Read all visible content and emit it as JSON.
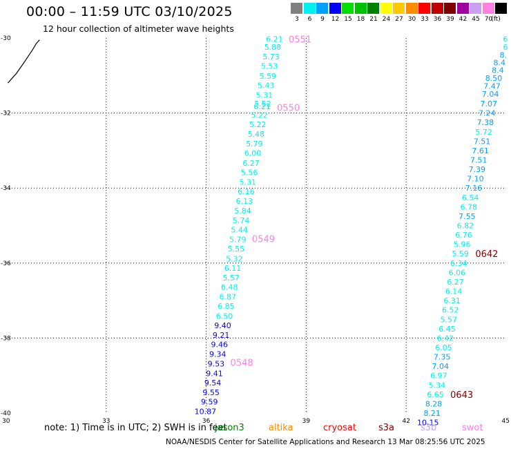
{
  "header": {
    "title": "00:00 – 11:59 UTC 03/10/2025",
    "subtitle": "12 hour collection of altimeter wave heights"
  },
  "legend": {
    "unit_label": "(ft)",
    "bins": [
      {
        "label": "3",
        "color": "#808080"
      },
      {
        "label": "6",
        "color": "#00f0f0"
      },
      {
        "label": "9",
        "color": "#00a0ff"
      },
      {
        "label": "12",
        "color": "#0000ff"
      },
      {
        "label": "15",
        "color": "#00e000"
      },
      {
        "label": "18",
        "color": "#00c000"
      },
      {
        "label": "21",
        "color": "#008000"
      },
      {
        "label": "24",
        "color": "#ffff00"
      },
      {
        "label": "27",
        "color": "#ffc800"
      },
      {
        "label": "30",
        "color": "#ff8c00"
      },
      {
        "label": "33",
        "color": "#ff0000"
      },
      {
        "label": "36",
        "color": "#c00000"
      },
      {
        "label": "39",
        "color": "#800000"
      },
      {
        "label": "42",
        "color": "#a000a0"
      },
      {
        "label": "45",
        "color": "#c8a0f0"
      },
      {
        "label": "70",
        "color": "#ff80e0"
      },
      {
        "label": "",
        "color": "#000000"
      }
    ]
  },
  "chart_data": {
    "type": "scatter",
    "title": "00:00 – 11:59 UTC 03/10/2025",
    "subtitle": "12 hour collection of altimeter wave heights",
    "xlim": [
      30,
      45
    ],
    "ylim": [
      -40,
      -30
    ],
    "x_ticks": [
      "30",
      "33",
      "36",
      "39",
      "42",
      "45"
    ],
    "y_ticks": [
      "-30",
      "-32",
      "-34",
      "-36",
      "-38",
      "-40"
    ],
    "grid": true,
    "units": "ft",
    "coastline": [
      [
        30.05,
        -31.2
      ],
      [
        30.3,
        -30.95
      ],
      [
        30.5,
        -30.7
      ],
      [
        30.65,
        -30.5
      ],
      [
        30.8,
        -30.3
      ],
      [
        30.9,
        -30.15
      ],
      [
        31.0,
        -30.05
      ]
    ],
    "tracks": [
      {
        "name": "track-west",
        "points": [
          {
            "x": 38.3,
            "y": -30.03,
            "v": "6.21",
            "c": "#00f0f0"
          },
          {
            "x": 38.25,
            "y": -30.24,
            "v": "5.88",
            "c": "#00f0f0"
          },
          {
            "x": 38.2,
            "y": -30.5,
            "v": "5.73",
            "c": "#00f0f0"
          },
          {
            "x": 38.15,
            "y": -30.75,
            "v": "5.53",
            "c": "#00f0f0"
          },
          {
            "x": 38.1,
            "y": -31.01,
            "v": "5.59",
            "c": "#00f0f0"
          },
          {
            "x": 38.05,
            "y": -31.26,
            "v": "5.43",
            "c": "#00f0f0"
          },
          {
            "x": 38.0,
            "y": -31.52,
            "v": "5.31",
            "c": "#00f0f0"
          },
          {
            "x": 37.95,
            "y": -31.75,
            "v": "5.52",
            "c": "#00f0f0"
          },
          {
            "x": 37.93,
            "y": -31.82,
            "v": "6.21",
            "c": "#00f0f0"
          },
          {
            "x": 37.85,
            "y": -32.05,
            "v": "5.22",
            "c": "#00f0f0"
          },
          {
            "x": 37.8,
            "y": -32.3,
            "v": "5.22",
            "c": "#00f0f0"
          },
          {
            "x": 37.75,
            "y": -32.56,
            "v": "5.48",
            "c": "#00f0f0"
          },
          {
            "x": 37.7,
            "y": -32.82,
            "v": "5.79",
            "c": "#00f0f0"
          },
          {
            "x": 37.65,
            "y": -33.07,
            "v": "6.00",
            "c": "#00f0f0"
          },
          {
            "x": 37.6,
            "y": -33.33,
            "v": "6.27",
            "c": "#00f0f0"
          },
          {
            "x": 37.55,
            "y": -33.58,
            "v": "5.56",
            "c": "#00f0f0"
          },
          {
            "x": 37.5,
            "y": -33.84,
            "v": "5.31",
            "c": "#00f0f0"
          },
          {
            "x": 37.45,
            "y": -34.09,
            "v": "6.16",
            "c": "#00f0f0"
          },
          {
            "x": 37.4,
            "y": -34.35,
            "v": "6.13",
            "c": "#00f0f0"
          },
          {
            "x": 37.35,
            "y": -34.6,
            "v": "5.84",
            "c": "#00f0f0"
          },
          {
            "x": 37.3,
            "y": -34.86,
            "v": "5.74",
            "c": "#00f0f0"
          },
          {
            "x": 37.25,
            "y": -35.11,
            "v": "5.44",
            "c": "#00f0f0"
          },
          {
            "x": 37.2,
            "y": -35.37,
            "v": "5.79",
            "c": "#00f0f0"
          },
          {
            "x": 37.15,
            "y": -35.62,
            "v": "5.55",
            "c": "#00f0f0"
          },
          {
            "x": 37.1,
            "y": -35.88,
            "v": "5.32",
            "c": "#00f0f0"
          },
          {
            "x": 37.05,
            "y": -36.13,
            "v": "6.11",
            "c": "#00f0f0"
          },
          {
            "x": 37.0,
            "y": -36.39,
            "v": "5.57",
            "c": "#00f0f0"
          },
          {
            "x": 36.95,
            "y": -36.64,
            "v": "6.48",
            "c": "#00f0f0"
          },
          {
            "x": 36.9,
            "y": -36.9,
            "v": "6.87",
            "c": "#00f0f0"
          },
          {
            "x": 36.85,
            "y": -37.15,
            "v": "6.85",
            "c": "#00f0f0"
          },
          {
            "x": 36.8,
            "y": -37.41,
            "v": "6.50",
            "c": "#00f0f0"
          },
          {
            "x": 36.75,
            "y": -37.66,
            "v": "9.40",
            "c": "#0000ff"
          },
          {
            "x": 36.7,
            "y": -37.92,
            "v": "9.21",
            "c": "#0000ff"
          },
          {
            "x": 36.65,
            "y": -38.17,
            "v": "9.46",
            "c": "#0000ff"
          },
          {
            "x": 36.6,
            "y": -38.43,
            "v": "9.34",
            "c": "#0000ff"
          },
          {
            "x": 36.55,
            "y": -38.68,
            "v": "9.53",
            "c": "#0000ff"
          },
          {
            "x": 36.5,
            "y": -38.94,
            "v": "9.41",
            "c": "#0000ff"
          },
          {
            "x": 36.45,
            "y": -39.19,
            "v": "9.54",
            "c": "#0000ff"
          },
          {
            "x": 36.4,
            "y": -39.45,
            "v": "9.55",
            "c": "#0000ff"
          },
          {
            "x": 36.35,
            "y": -39.7,
            "v": "9.59",
            "c": "#0000ff"
          },
          {
            "x": 36.3,
            "y": -39.95,
            "v": "10.87",
            "c": "#0000ff"
          }
        ]
      },
      {
        "name": "track-east",
        "points": [
          {
            "x": 45.05,
            "y": -30.03,
            "v": "6",
            "c": "#00f0f0"
          },
          {
            "x": 45.05,
            "y": -30.24,
            "v": "6",
            "c": "#00f0f0"
          },
          {
            "x": 45.02,
            "y": -30.45,
            "v": "8.",
            "c": "#00a0ff"
          },
          {
            "x": 44.98,
            "y": -30.65,
            "v": "8.4",
            "c": "#00a0ff"
          },
          {
            "x": 44.93,
            "y": -30.86,
            "v": "8.4",
            "c": "#00a0ff"
          },
          {
            "x": 44.88,
            "y": -31.07,
            "v": "8.50",
            "c": "#00a0ff"
          },
          {
            "x": 44.83,
            "y": -31.28,
            "v": "7.47",
            "c": "#00a0ff"
          },
          {
            "x": 44.78,
            "y": -31.49,
            "v": "7.04",
            "c": "#00a0ff"
          },
          {
            "x": 44.73,
            "y": -31.75,
            "v": "7.07",
            "c": "#00a0ff"
          },
          {
            "x": 44.68,
            "y": -32.0,
            "v": "7.24",
            "c": "#00a0ff"
          },
          {
            "x": 44.63,
            "y": -32.25,
            "v": "7.38",
            "c": "#00a0ff"
          },
          {
            "x": 44.58,
            "y": -32.5,
            "v": "5.72",
            "c": "#00f0f0"
          },
          {
            "x": 44.53,
            "y": -32.75,
            "v": "7.51",
            "c": "#00a0ff"
          },
          {
            "x": 44.48,
            "y": -33.0,
            "v": "7.61",
            "c": "#00a0ff"
          },
          {
            "x": 44.43,
            "y": -33.25,
            "v": "7.51",
            "c": "#00a0ff"
          },
          {
            "x": 44.38,
            "y": -33.5,
            "v": "7.39",
            "c": "#00a0ff"
          },
          {
            "x": 44.33,
            "y": -33.75,
            "v": "7.10",
            "c": "#00a0ff"
          },
          {
            "x": 44.28,
            "y": -34.0,
            "v": "7.16",
            "c": "#00a0ff"
          },
          {
            "x": 44.18,
            "y": -34.25,
            "v": "6.54",
            "c": "#00f0f0"
          },
          {
            "x": 44.13,
            "y": -34.5,
            "v": "6.78",
            "c": "#00f0f0"
          },
          {
            "x": 44.08,
            "y": -34.75,
            "v": "7.55",
            "c": "#00a0ff"
          },
          {
            "x": 44.03,
            "y": -35.0,
            "v": "6.82",
            "c": "#00f0f0"
          },
          {
            "x": 43.98,
            "y": -35.25,
            "v": "6.76",
            "c": "#00f0f0"
          },
          {
            "x": 43.93,
            "y": -35.5,
            "v": "5.96",
            "c": "#00f0f0"
          },
          {
            "x": 43.88,
            "y": -35.75,
            "v": "5.59",
            "c": "#00f0f0"
          },
          {
            "x": 43.83,
            "y": -36.0,
            "v": "6.34",
            "c": "#00f0f0"
          },
          {
            "x": 43.78,
            "y": -36.25,
            "v": "6.06",
            "c": "#00f0f0"
          },
          {
            "x": 43.73,
            "y": -36.5,
            "v": "6.27",
            "c": "#00f0f0"
          },
          {
            "x": 43.68,
            "y": -36.75,
            "v": "6.14",
            "c": "#00f0f0"
          },
          {
            "x": 43.63,
            "y": -37.0,
            "v": "6.31",
            "c": "#00f0f0"
          },
          {
            "x": 43.58,
            "y": -37.25,
            "v": "6.52",
            "c": "#00f0f0"
          },
          {
            "x": 43.53,
            "y": -37.5,
            "v": "5.57",
            "c": "#00f0f0"
          },
          {
            "x": 43.48,
            "y": -37.75,
            "v": "6.45",
            "c": "#00f0f0"
          },
          {
            "x": 43.43,
            "y": -38.0,
            "v": "6.42",
            "c": "#00f0f0"
          },
          {
            "x": 43.38,
            "y": -38.25,
            "v": "6.05",
            "c": "#00f0f0"
          },
          {
            "x": 43.33,
            "y": -38.5,
            "v": "7.35",
            "c": "#00a0ff"
          },
          {
            "x": 43.28,
            "y": -38.75,
            "v": "7.04",
            "c": "#00a0ff"
          },
          {
            "x": 43.23,
            "y": -39.0,
            "v": "6.97",
            "c": "#00f0f0"
          },
          {
            "x": 43.18,
            "y": -39.25,
            "v": "5.34",
            "c": "#00f0f0"
          },
          {
            "x": 43.13,
            "y": -39.5,
            "v": "6.65",
            "c": "#00f0f0"
          },
          {
            "x": 43.08,
            "y": -39.75,
            "v": "8.28",
            "c": "#00a0ff"
          },
          {
            "x": 43.03,
            "y": -40.0,
            "v": "8.21",
            "c": "#00a0ff"
          },
          {
            "x": 42.98,
            "y": -40.25,
            "v": "10.15",
            "c": "#0000ff"
          }
        ]
      }
    ],
    "time_labels": [
      {
        "text": "0551",
        "x": 38.35,
        "y": -30.03,
        "color": "#ff80e0"
      },
      {
        "text": "0550",
        "x": 38.0,
        "y": -31.85,
        "color": "#ff80e0"
      },
      {
        "text": "0549",
        "x": 37.25,
        "y": -35.35,
        "color": "#ff80e0"
      },
      {
        "text": "0548",
        "x": 36.6,
        "y": -38.65,
        "color": "#ff80e0"
      },
      {
        "text": "0642",
        "x": 43.95,
        "y": -35.75,
        "color": "#800000"
      },
      {
        "text": "0643",
        "x": 43.2,
        "y": -39.5,
        "color": "#800000"
      }
    ]
  },
  "note": {
    "text": "note: 1) Time is in UTC; 2) SWH is in feet"
  },
  "missions": [
    {
      "label": "jason3",
      "color": "#008000"
    },
    {
      "label": "altika",
      "color": "#ff8c00"
    },
    {
      "label": "cryosat",
      "color": "#ff0000"
    },
    {
      "label": "s3a",
      "color": "#800000"
    },
    {
      "label": "s3b",
      "color": "#c8a0f0"
    },
    {
      "label": "swot",
      "color": "#ff80e0"
    }
  ],
  "footer": {
    "text": "NOAA/NESDIS Center for Satellite Applications and Research    13 Mar 08:25:56 UTC 2025"
  }
}
